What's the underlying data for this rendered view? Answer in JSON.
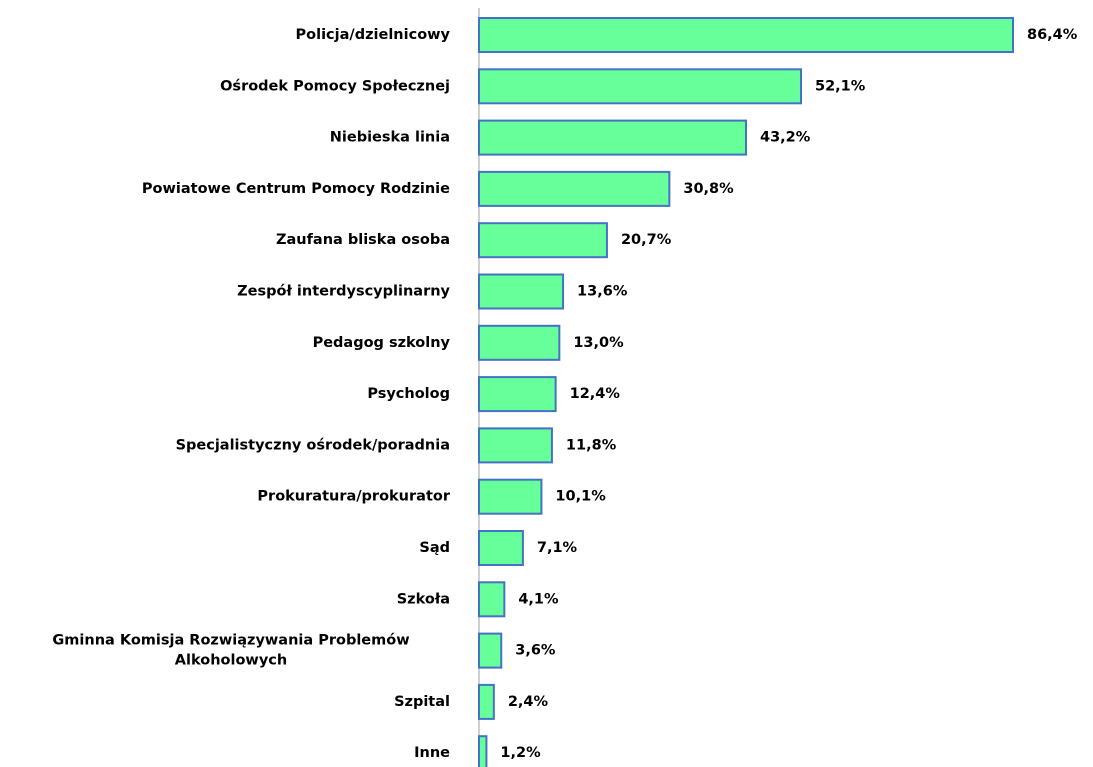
{
  "chart_data": {
    "type": "bar",
    "orientation": "horizontal",
    "categories": [
      "Policja/dzielnicowy",
      "Ośrodek Pomocy Społecznej",
      "Niebieska linia",
      "Powiatowe Centrum Pomocy Rodzinie",
      "Zaufana bliska osoba",
      "Zespół interdyscyplinarny",
      "Pedagog szkolny",
      "Psycholog",
      "Specjalistyczny ośrodek/poradnia",
      "Prokuratura/prokurator",
      "Sąd",
      "Szkoła",
      "Gminna Komisja Rozwiązywania Problemów Alkoholowych",
      "Szpital",
      "Inne"
    ],
    "values": [
      86.4,
      52.1,
      43.2,
      30.8,
      20.7,
      13.6,
      13.0,
      12.4,
      11.8,
      10.1,
      7.1,
      4.1,
      3.6,
      2.4,
      1.2
    ],
    "value_labels": [
      "86,4%",
      "52,1%",
      "43,2%",
      "30,8%",
      "20,7%",
      "13,6%",
      "13,0%",
      "12,4%",
      "11,8%",
      "10,1%",
      "7,1%",
      "4,1%",
      "3,6%",
      "2,4%",
      "1,2%"
    ],
    "color": "#66ff99",
    "edge_color": "#4472c4"
  }
}
